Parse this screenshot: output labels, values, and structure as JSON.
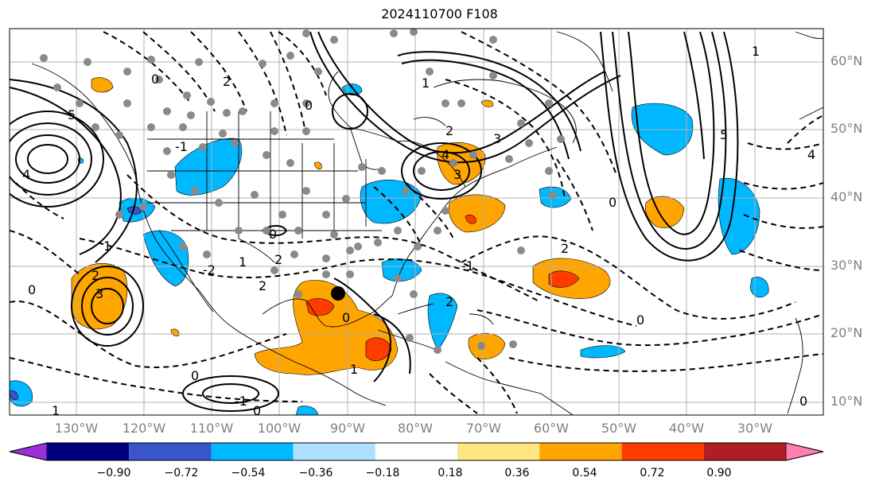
{
  "title": "2024110700 F108",
  "lat_labels": [
    "60°N",
    "50°N",
    "40°N",
    "30°N",
    "20°N",
    "10°N"
  ],
  "lon_labels": [
    "130°W",
    "120°W",
    "110°W",
    "100°W",
    "90°W",
    "80°W",
    "70°W",
    "60°W",
    "50°W",
    "40°W",
    "30°W"
  ],
  "colorbar": {
    "ticks": [
      "−0.90",
      "−0.72",
      "−0.54",
      "−0.36",
      "−0.18",
      "0.18",
      "0.36",
      "0.54",
      "0.72",
      "0.90"
    ],
    "colors": [
      "#9b30d9",
      "#00007f",
      "#3a55c8",
      "#00b8ff",
      "#aee0ff",
      "#ffffff",
      "#ffe680",
      "#ffa500",
      "#ff3c00",
      "#b01e23",
      "#ff7fb2"
    ]
  },
  "contour_labels": [
    "0",
    "1",
    "2",
    "3",
    "4",
    "5",
    "-1",
    "-2",
    "0",
    "1",
    "2",
    "0",
    "1",
    "2",
    "3",
    "4",
    "5",
    "4",
    "2",
    "0",
    "2",
    "-1",
    "0",
    "1",
    "0",
    "-1",
    "2",
    "0",
    "2",
    "0",
    "1",
    "3",
    "0",
    "1",
    "0"
  ],
  "marker": {
    "lon": -90.5,
    "lat": 25.5
  }
}
